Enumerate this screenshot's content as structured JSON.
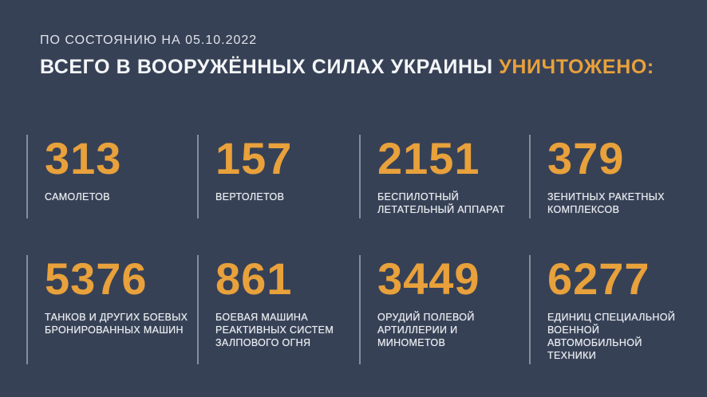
{
  "header": {
    "date_line": "ПО СОСТОЯНИЮ НА 05.10.2022",
    "title_main": "ВСЕГО В ВООРУЖЁННЫХ СИЛАХ УКРАИНЫ ",
    "title_accent": "УНИЧТОЖЕНО:"
  },
  "colors": {
    "background": "#374156",
    "accent_orange": "#e8a13b",
    "text_light": "#e9ecf0",
    "divider": "#d8dbe0"
  },
  "stats": [
    {
      "value": "313",
      "label": "САМОЛЕТОВ"
    },
    {
      "value": "157",
      "label": "ВЕРТОЛЕТОВ"
    },
    {
      "value": "2151",
      "label": "БЕСПИЛОТНЫЙ\nЛЕТАТЕЛЬНЫЙ АППАРАТ"
    },
    {
      "value": "379",
      "label": "ЗЕНИТНЫХ РАКЕТНЫХ\nКОМПЛЕКСОВ"
    },
    {
      "value": "5376",
      "label": "ТАНКОВ И ДРУГИХ БОЕВЫХ\nБРОНИРОВАННЫХ МАШИН"
    },
    {
      "value": "861",
      "label": "БОЕВАЯ МАШИНА\nРЕАКТИВНЫХ СИСТЕМ\nЗАЛПОВОГО ОГНЯ"
    },
    {
      "value": "3449",
      "label": "ОРУДИЙ ПОЛЕВОЙ\nАРТИЛЛЕРИИ И МИНОМЕТОВ"
    },
    {
      "value": "6277",
      "label": "ЕДИНИЦ СПЕЦИАЛЬНОЙ\nВОЕННОЙ АВТОМОБИЛЬНОЙ\nТЕХНИКИ"
    }
  ],
  "chart_data": {
    "type": "table",
    "title": "ВСЕГО В ВООРУЖЁННЫХ СИЛАХ УКРАИНЫ УНИЧТОЖЕНО:",
    "subtitle": "ПО СОСТОЯНИЮ НА 05.10.2022",
    "categories": [
      "САМОЛЕТОВ",
      "ВЕРТОЛЕТОВ",
      "БЕСПИЛОТНЫЙ ЛЕТАТЕЛЬНЫЙ АППАРАТ",
      "ЗЕНИТНЫХ РАКЕТНЫХ КОМПЛЕКСОВ",
      "ТАНКОВ И ДРУГИХ БОЕВЫХ БРОНИРОВАННЫХ МАШИН",
      "БОЕВАЯ МАШИНА РЕАКТИВНЫХ СИСТЕМ ЗАЛПОВОГО ОГНЯ",
      "ОРУДИЙ ПОЛЕВОЙ АРТИЛЛЕРИИ И МИНОМЕТОВ",
      "ЕДИНИЦ СПЕЦИАЛЬНОЙ ВОЕННОЙ АВТОМОБИЛЬНОЙ ТЕХНИКИ"
    ],
    "values": [
      313,
      157,
      2151,
      379,
      5376,
      861,
      3449,
      6277
    ],
    "layout": "2 rows x 4 columns stat cards, values above labels, left divider bar per card"
  }
}
